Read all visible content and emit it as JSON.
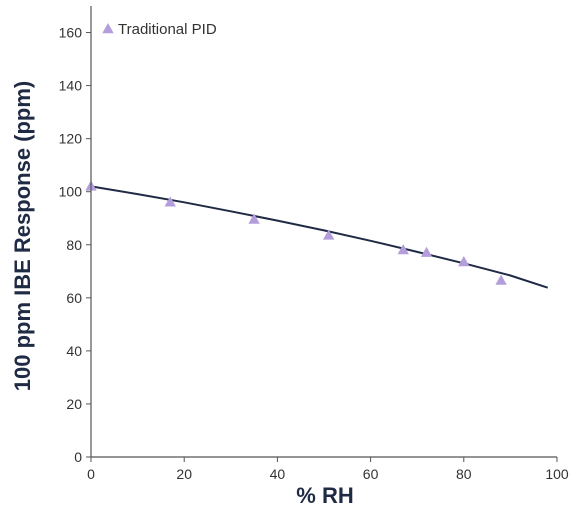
{
  "chart_data": {
    "type": "scatter",
    "xlabel": "% RH",
    "ylabel": "100 ppm IBE Response (ppm)",
    "xlim": [
      0,
      100
    ],
    "ylim": [
      0,
      170
    ],
    "xticks": [
      0,
      20,
      40,
      60,
      80,
      100
    ],
    "yticks": [
      0,
      20,
      40,
      60,
      80,
      100,
      120,
      140,
      160
    ],
    "grid": false,
    "legend_position": "top-left",
    "series": [
      {
        "name": "Traditional PID",
        "color": "#b39ddb",
        "marker": "triangle",
        "x": [
          0,
          17,
          35,
          51,
          67,
          72,
          80,
          88
        ],
        "y": [
          102,
          96,
          89.5,
          83.5,
          78,
          77,
          73.5,
          66.5
        ]
      }
    ],
    "trendline": {
      "color": "#1f2a44",
      "x": [
        0,
        10,
        20,
        30,
        40,
        50,
        60,
        70,
        80,
        90,
        98
      ],
      "y": [
        102,
        99.1,
        96,
        92.6,
        89.1,
        85.4,
        81.5,
        77.3,
        73,
        68.4,
        63.8
      ]
    }
  }
}
